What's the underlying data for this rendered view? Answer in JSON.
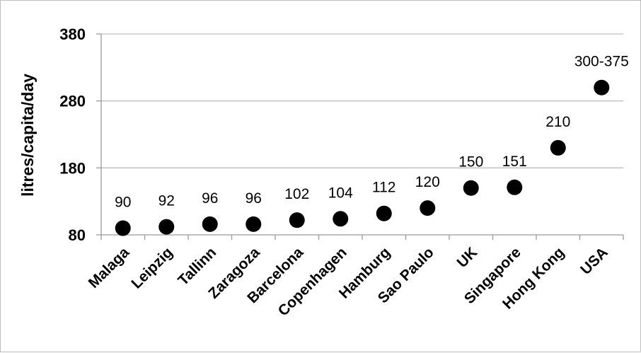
{
  "chart_data": {
    "type": "scatter",
    "title": "",
    "xlabel": "",
    "ylabel": "litres/capita/day",
    "ylim": [
      80,
      380
    ],
    "yticks": [
      80,
      180,
      280,
      380
    ],
    "grid": true,
    "categories": [
      "Malaga",
      "Leipzig",
      "Tallinn",
      "Zaragoza",
      "Barcelona",
      "Copenhagen",
      "Hamburg",
      "Sao Paulo",
      "UK",
      "Singapore",
      "Hong Kong",
      "USA"
    ],
    "values": [
      90,
      92,
      96,
      96,
      102,
      104,
      112,
      120,
      150,
      151,
      210,
      300
    ],
    "data_labels": [
      "90",
      "92",
      "96",
      "96",
      "102",
      "104",
      "112",
      "120",
      "150",
      "151",
      "210",
      "300-375"
    ],
    "marker_color": "#000000",
    "grid_color": "#bfbfbf"
  }
}
